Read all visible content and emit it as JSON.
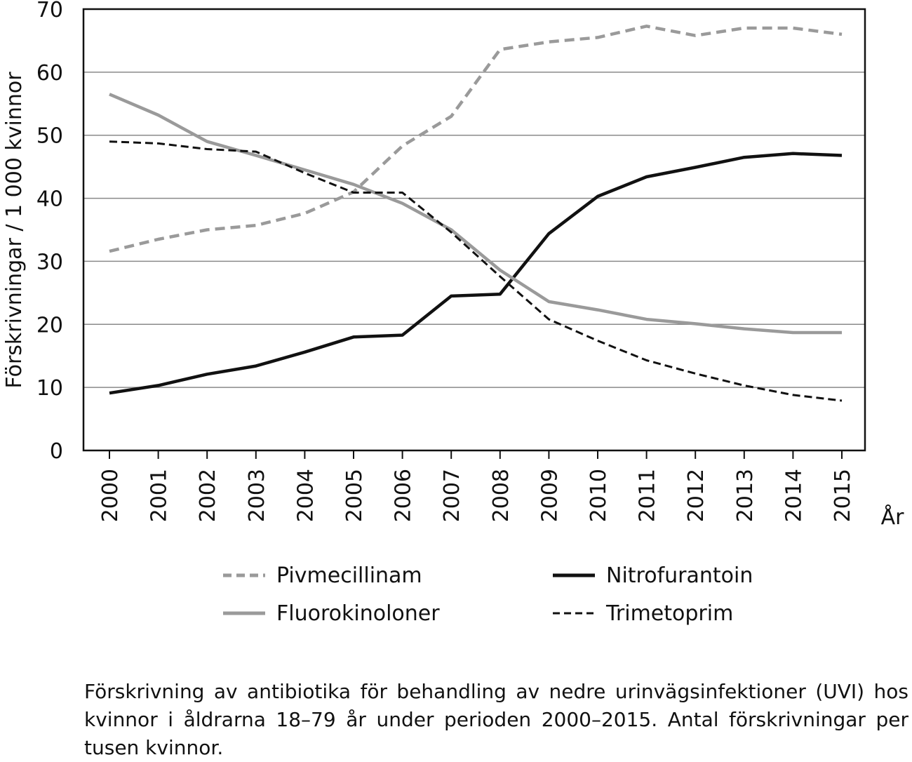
{
  "chart_data": {
    "type": "line",
    "ylabel": "Förskrivningar / 1 000 kvinnor",
    "xlabel": "År",
    "x": [
      "2000",
      "2001",
      "2002",
      "2003",
      "2004",
      "2005",
      "2006",
      "2007",
      "2008",
      "2009",
      "2010",
      "2011",
      "2012",
      "2013",
      "2014",
      "2015"
    ],
    "ylim": [
      0,
      70
    ],
    "yticks": [
      0,
      10,
      20,
      30,
      40,
      50,
      60,
      70
    ],
    "grid": true,
    "legend_position": "bottom",
    "series": [
      {
        "name": "Pivmecillinam",
        "color": "#9a9a9a",
        "style": "dashed",
        "values": [
          31.6,
          33.5,
          35.0,
          35.7,
          37.6,
          41.0,
          48.3,
          53.0,
          63.6,
          64.8,
          65.5,
          67.3,
          65.8,
          67.0,
          67.0,
          66.0
        ]
      },
      {
        "name": "Nitrofurantoin",
        "color": "#111111",
        "style": "solid",
        "values": [
          9.1,
          10.3,
          12.1,
          13.4,
          15.6,
          18.0,
          18.3,
          24.5,
          24.8,
          34.4,
          40.3,
          43.4,
          44.9,
          46.5,
          47.1,
          46.8
        ]
      },
      {
        "name": "Fluorokinoloner",
        "color": "#9a9a9a",
        "style": "solid",
        "values": [
          56.5,
          53.2,
          49.0,
          46.8,
          44.5,
          42.2,
          39.2,
          35.0,
          28.6,
          23.6,
          22.3,
          20.8,
          20.1,
          19.3,
          18.7,
          18.7
        ]
      },
      {
        "name": "Trimetoprim",
        "color": "#111111",
        "style": "dashed",
        "values": [
          49.0,
          48.7,
          47.8,
          47.4,
          44.0,
          40.9,
          40.9,
          34.6,
          27.6,
          20.8,
          17.4,
          14.3,
          12.2,
          10.3,
          8.8,
          7.9
        ]
      }
    ],
    "caption": "Förskrivning av antibiotika för behandling av nedre urinvägsinfektioner (UVI) hos kvinnor i åldrarna 18–79 år under perioden 2000–2015. Antal förskrivningar per tusen kvinnor."
  }
}
